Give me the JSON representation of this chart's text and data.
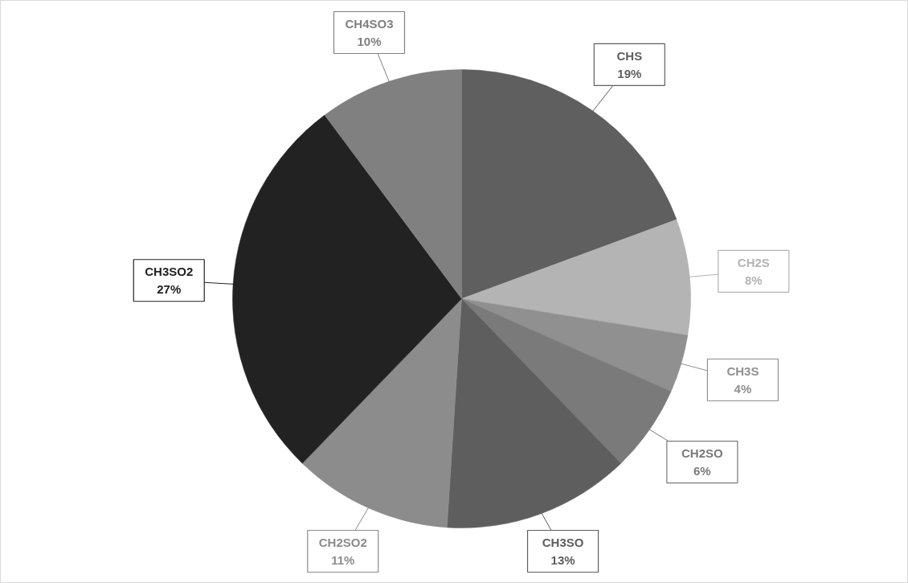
{
  "chart_data": {
    "type": "pie",
    "categories": [
      "CHS",
      "CH2S",
      "CH3S",
      "CH2SO",
      "CH3SO",
      "CH2SO2",
      "CH3SO2",
      "CH4SO3"
    ],
    "values": [
      19,
      8,
      4,
      6,
      13,
      11,
      27,
      10
    ],
    "value_labels": [
      "19%",
      "8%",
      "4%",
      "6%",
      "13%",
      "11%",
      "27%",
      "10%"
    ],
    "colors": [
      "#5f5f5f",
      "#b4b4b4",
      "#909090",
      "#7a7a7a",
      "#5e5e5e",
      "#8c8c8c",
      "#222222",
      "#808080"
    ]
  }
}
